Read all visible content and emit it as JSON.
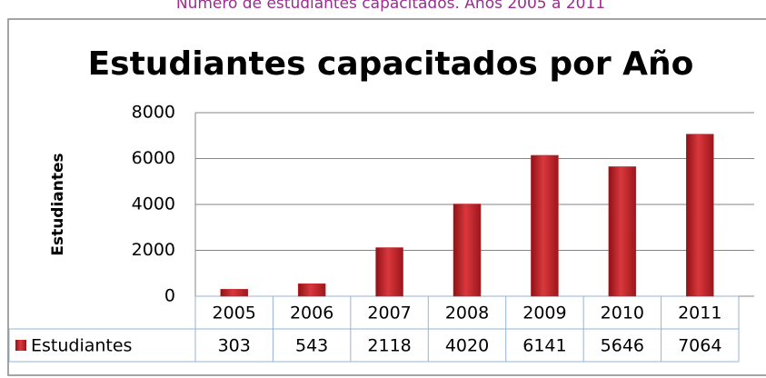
{
  "caption": "Número de estudiantes capacitados. Años 2005 a 2011",
  "chart_data": {
    "type": "bar",
    "title": "Estudiantes capacitados por Año",
    "y_label": "Estudiantes",
    "categories": [
      "2005",
      "2006",
      "2007",
      "2008",
      "2009",
      "2010",
      "2011"
    ],
    "series": [
      {
        "name": "Estudiantes",
        "color": "#c0272d",
        "values": [
          303,
          543,
          2118,
          4020,
          6141,
          5646,
          7064
        ]
      }
    ],
    "ylim": [
      0,
      8000
    ],
    "yticks": [
      0,
      2000,
      4000,
      6000,
      8000
    ],
    "grid": true
  }
}
